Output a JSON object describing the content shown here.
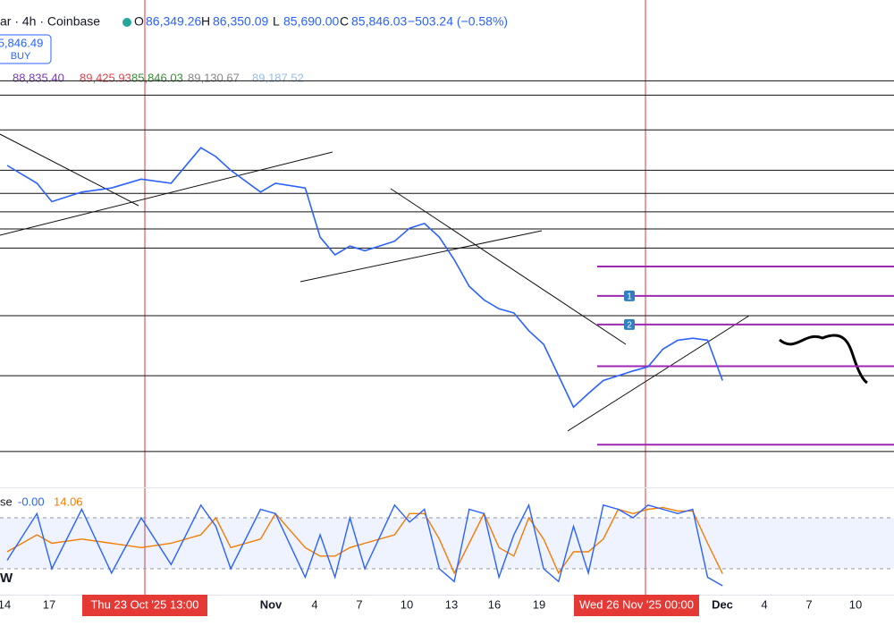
{
  "chart_data": {
    "type": "line",
    "header": {
      "symbol": "ar · 4h · Coinbase",
      "o_label": "O",
      "open": "86,349.26",
      "h_label": "H",
      "high": "86,350.09",
      "l_label": "L",
      "low": "85,690.00",
      "c_label": "C",
      "close": "85,846.03",
      "change": "−503.24 (−0.58%)"
    },
    "order_box": {
      "price": "5,846.49",
      "side": "BUY"
    },
    "indicator_values": [
      {
        "text": "88,835.40",
        "color": "#7b3fb5"
      },
      {
        "text": "89,425.93",
        "color": "#e0454f"
      },
      {
        "text": "85,846.03",
        "color": "#3a8f3a"
      },
      {
        "text": "89,130.67",
        "color": "#8a8a8a"
      },
      {
        "text": "89,187.52",
        "color": "#9bbde8"
      }
    ],
    "x": [
      "2025-10-14",
      "2025-10-16",
      "2025-10-17",
      "2025-10-19",
      "2025-10-21",
      "2025-10-23",
      "2025-10-25",
      "2025-10-27",
      "2025-10-28",
      "2025-10-29",
      "2025-10-31",
      "2025-11-01",
      "2025-11-03",
      "2025-11-04",
      "2025-11-05",
      "2025-11-06",
      "2025-11-07",
      "2025-11-09",
      "2025-11-10",
      "2025-11-11",
      "2025-11-12",
      "2025-11-13",
      "2025-11-14",
      "2025-11-15",
      "2025-11-16",
      "2025-11-17",
      "2025-11-18",
      "2025-11-19",
      "2025-11-20",
      "2025-11-21",
      "2025-11-22",
      "2025-11-23",
      "2025-11-24",
      "2025-11-25",
      "2025-11-26",
      "2025-11-27",
      "2025-11-28",
      "2025-11-29",
      "2025-11-30",
      "2025-12-01"
    ],
    "series": [
      {
        "name": "Price",
        "color": "#2962ff",
        "values": [
          117300,
          114700,
          112000,
          113400,
          114000,
          115300,
          114700,
          119900,
          118600,
          116600,
          113400,
          114700,
          114000,
          106800,
          104200,
          105500,
          104800,
          106200,
          108100,
          108800,
          106800,
          103500,
          99600,
          97600,
          96300,
          95700,
          93100,
          91100,
          86500,
          81900,
          83900,
          85800,
          86500,
          87200,
          87800,
          90400,
          91700,
          92000,
          91700,
          85800
        ]
      }
    ],
    "ylim": [
      70800,
      130400
    ],
    "levels": [
      129700,
      127600,
      122500,
      116600,
      113200,
      110500,
      108000,
      105200,
      95300,
      86500,
      75400
    ],
    "level_color": "#111111",
    "order_levels": [
      {
        "value": 102500,
        "label": null
      },
      {
        "value": 98200,
        "label": "1"
      },
      {
        "value": 94000,
        "label": "2"
      },
      {
        "value": 87900,
        "label": null
      },
      {
        "value": 76400,
        "label": null
      }
    ],
    "order_level_color": "#9c27b0",
    "stoch": {
      "title": "se",
      "k_label": "-0.00",
      "d_label": "14.06",
      "ylim": [
        0,
        100
      ],
      "band": [
        20,
        80
      ],
      "series": [
        {
          "name": "K",
          "color": "#2962ff",
          "values": [
            30,
            85,
            20,
            90,
            15,
            80,
            25,
            95,
            70,
            20,
            90,
            85,
            10,
            60,
            10,
            80,
            20,
            95,
            75,
            90,
            20,
            5,
            90,
            85,
            10,
            60,
            95,
            20,
            5,
            70,
            15,
            95,
            90,
            80,
            95,
            90,
            85,
            90,
            10,
            0
          ]
        },
        {
          "name": "D",
          "color": "#f57c00",
          "values": [
            40,
            60,
            50,
            55,
            50,
            45,
            50,
            60,
            80,
            45,
            55,
            85,
            45,
            35,
            35,
            45,
            50,
            60,
            85,
            85,
            55,
            15,
            50,
            85,
            45,
            35,
            80,
            55,
            15,
            40,
            40,
            55,
            90,
            85,
            90,
            92,
            88,
            88,
            50,
            14.06
          ]
        }
      ]
    },
    "corner_label": "W",
    "x_labels": [
      "14",
      "17",
      "Thu 23 Oct '25   13:00",
      "Nov",
      "4",
      "7",
      "10",
      "13",
      "16",
      "19",
      "Wed 26 Nov '25   00:00",
      "Dec",
      "4",
      "7",
      "10"
    ]
  }
}
